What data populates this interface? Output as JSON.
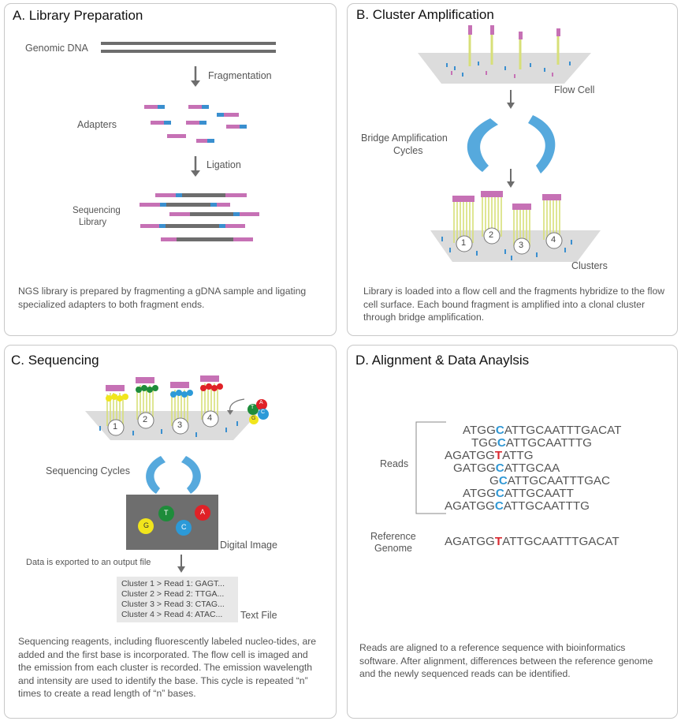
{
  "colors": {
    "adapter_pink": "#c671b5",
    "adapter_blue": "#3a8fcf",
    "dna_gray": "#6d6d6d",
    "arrow_blue": "#56a9dd",
    "strand_yellow": "#d7df78",
    "flowcell_gray": "#dcdcdc",
    "base_green": "#1e8c3a",
    "base_red": "#e02127",
    "base_blue": "#2c9ad8",
    "base_yellow": "#f1e51c"
  },
  "panel_a": {
    "title": "A. Library Preparation",
    "genomic_dna": "Genomic DNA",
    "fragmentation": "Fragmentation",
    "adapters": "Adapters",
    "ligation": "Ligation",
    "sequencing_library_1": "Sequencing",
    "sequencing_library_2": "Library",
    "description": "NGS library is prepared by fragmenting a gDNA sample and ligating specialized adapters to both fragment ends."
  },
  "panel_b": {
    "title": "B. Cluster Amplification",
    "flow_cell": "Flow Cell",
    "bridge_1": "Bridge Amplification",
    "bridge_2": "Cycles",
    "clusters": "Clusters",
    "cluster_numbers": [
      "1",
      "2",
      "3",
      "4"
    ],
    "description": "Library is loaded into a flow cell and the fragments hybridize to the flow cell surface. Each bound fragment is amplified into a clonal cluster through bridge amplification."
  },
  "panel_c": {
    "title": "C. Sequencing",
    "cluster_numbers": [
      "1",
      "2",
      "3",
      "4"
    ],
    "bases": [
      "T",
      "A",
      "C",
      "G"
    ],
    "sequencing_cycles": "Sequencing Cycles",
    "image_bases": [
      "T",
      "A",
      "G",
      "C"
    ],
    "digital_image": "Digital Image",
    "export_text": "Data is exported to an output file",
    "text_file_lines": [
      "Cluster 1 > Read 1: GAGT...",
      "Cluster 2 > Read 2: TTGA...",
      "Cluster 3 > Read 3: CTAG...",
      "Cluster 4 > Read 4: ATAC..."
    ],
    "text_file": "Text File",
    "description": "Sequencing reagents, including fluorescently labeled nucleo-tides, are added and the first base is incorporated. The flow cell is imaged and the emission from each cluster is recorded. The emission wavelength and intensity are used to identify the base. This cycle is repeated “n” times to create a read length of “n” bases."
  },
  "panel_d": {
    "title": "D. Alignment & Data Anaylsis",
    "reads_label": "Reads",
    "reference_label_1": "Reference",
    "reference_label_2": "Genome",
    "reads": [
      {
        "pre": "ATGG",
        "hl": "C",
        "post": "ATTGCAATTTGACAT",
        "color": "blue"
      },
      {
        "pre": "TGG",
        "hl": "C",
        "post": "ATTGCAATTTG",
        "color": "blue"
      },
      {
        "pre": "AGATGG",
        "hl": "T",
        "post": "ATTG",
        "color": "red"
      },
      {
        "pre": "GATGG",
        "hl": "C",
        "post": "ATTGCAA",
        "color": "blue"
      },
      {
        "pre": "G",
        "hl": "C",
        "post": "ATTGCAATTTGAC",
        "color": "blue"
      },
      {
        "pre": "ATGG",
        "hl": "C",
        "post": "ATTGCAATT",
        "color": "blue"
      },
      {
        "pre": "AGATGG",
        "hl": "C",
        "post": "ATTGCAATTTG",
        "color": "blue"
      }
    ],
    "reference": {
      "pre": "AGATGG",
      "hl": "T",
      "post": "ATTGCAATTTGACAT",
      "color": "red"
    },
    "description": "Reads are aligned to a reference sequence with bioinformatics software. After alignment, differences between the reference genome and the newly sequenced reads can be identified."
  }
}
